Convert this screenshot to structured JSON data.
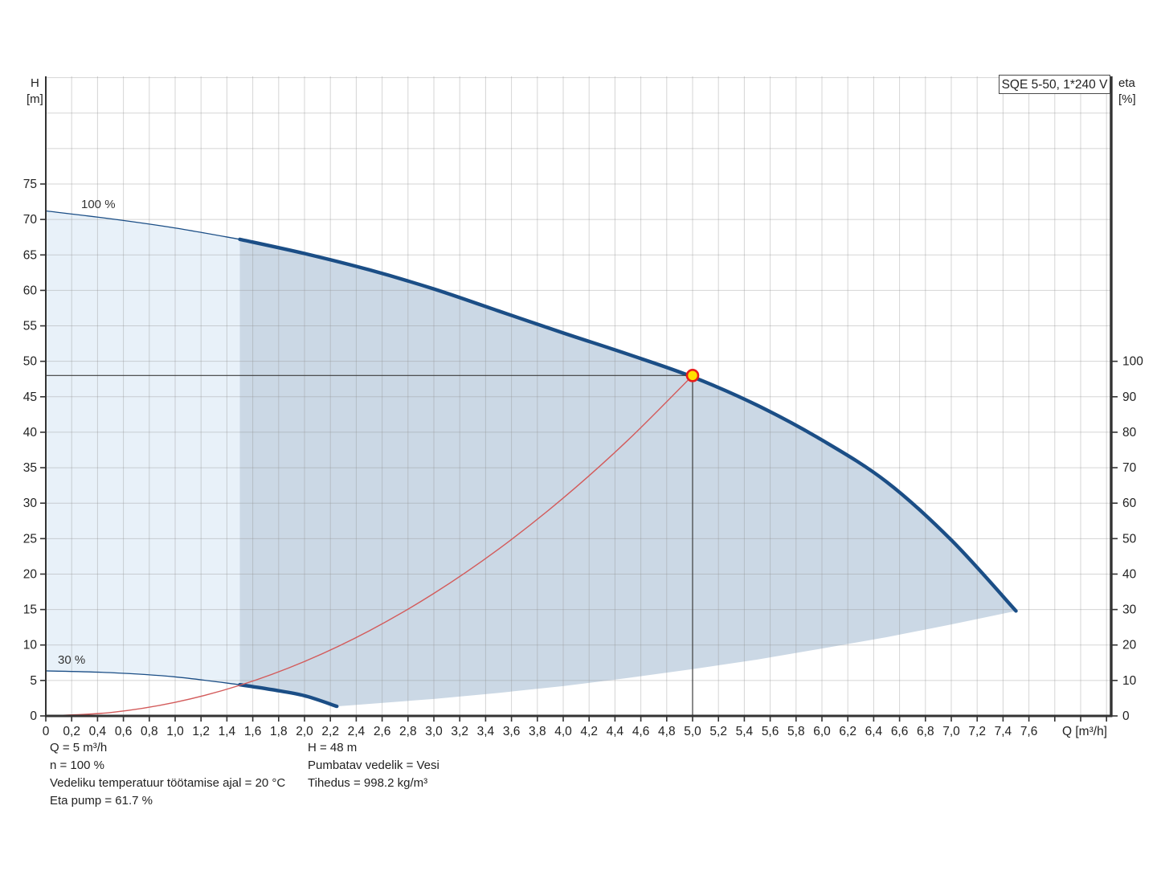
{
  "title_box": {
    "label": "SQE 5-50, 1*240 V"
  },
  "axis_labels": {
    "left_1": "H",
    "left_2": "[m]",
    "right_1": "eta",
    "right_2": "[%]",
    "x": "Q [m³/h]"
  },
  "curve_labels": {
    "c100": "100 %",
    "c30": "30 %"
  },
  "footer": {
    "col1": [
      "Q = 5 m³/h",
      "n = 100 %",
      "Vedeliku temperatuur töötamise ajal = 20 °C",
      "Eta pump = 61.7 %"
    ],
    "col2": [
      "H = 48 m",
      "Pumbatav vedelik = Vesi",
      "Tihedus = 998.2 kg/m³"
    ]
  },
  "colors": {
    "curve_blue": "#1b4e86",
    "fill_light": "#e8f1f9",
    "fill_dark": "#cbd8e5",
    "system_red": "#d35b5b",
    "grid": "rgba(145,145,145,0.38)",
    "axis": "#333333",
    "crosshair": "#3c3c3c",
    "marker_fill": "#ffdf00",
    "marker_stroke": "#e81c1c",
    "tick_text": "#222222"
  },
  "chart_data": {
    "type": "line",
    "title": "SQE 5-50, 1*240 V",
    "xlabel": "Q [m³/h]",
    "ylabel_left": "H [m]",
    "ylabel_right": "eta [%]",
    "xlim": [
      0,
      8.25
    ],
    "ylim_left": [
      0,
      90.2
    ],
    "ylim_right_eta": [
      0,
      100
    ],
    "grid": true,
    "x_ticks": {
      "step": 0.2,
      "label_max": 7.6,
      "grid_max": 8.2,
      "decimal_separator": ","
    },
    "h_ticks": {
      "step": 5,
      "label_max": 75,
      "grid_max": 90
    },
    "eta_ticks": {
      "step": 10,
      "max": 100,
      "h_equivalent_of_eta100": 50
    },
    "series": [
      {
        "name": "pump-curve-100pct-unclipped",
        "speed_label": "100 %",
        "style": "thin-blue",
        "points": [
          [
            0,
            71.2
          ],
          [
            0.5,
            70.1
          ],
          [
            1.0,
            68.8
          ],
          [
            1.5,
            67.2
          ]
        ]
      },
      {
        "name": "pump-curve-100pct",
        "speed_label": "100 %",
        "style": "thick-blue",
        "points": [
          [
            1.5,
            67.2
          ],
          [
            2.0,
            65.2
          ],
          [
            2.5,
            62.9
          ],
          [
            3.0,
            60.2
          ],
          [
            3.5,
            57.1
          ],
          [
            4.0,
            54.0
          ],
          [
            4.5,
            51.0
          ],
          [
            5.0,
            47.8
          ],
          [
            5.5,
            43.8
          ],
          [
            6.0,
            38.9
          ],
          [
            6.5,
            33.0
          ],
          [
            7.0,
            24.8
          ],
          [
            7.5,
            14.8
          ]
        ]
      },
      {
        "name": "pump-curve-30pct-unclipped",
        "speed_label": "30 %",
        "style": "thin-blue",
        "points": [
          [
            0,
            6.35
          ],
          [
            0.5,
            6.1
          ],
          [
            1.0,
            5.5
          ],
          [
            1.5,
            4.4
          ]
        ]
      },
      {
        "name": "pump-curve-30pct",
        "speed_label": "30 %",
        "style": "thick-blue",
        "points": [
          [
            1.5,
            4.4
          ],
          [
            1.75,
            3.7
          ],
          [
            2.0,
            2.85
          ],
          [
            2.25,
            1.35
          ]
        ]
      },
      {
        "name": "system-curve",
        "style": "thin-red",
        "points": [
          [
            0,
            0
          ],
          [
            0.5,
            0.48
          ],
          [
            1.0,
            1.92
          ],
          [
            1.5,
            4.32
          ],
          [
            2.0,
            7.68
          ],
          [
            2.5,
            12.0
          ],
          [
            3.0,
            17.28
          ],
          [
            3.5,
            23.52
          ],
          [
            4.0,
            30.72
          ],
          [
            4.5,
            38.88
          ],
          [
            5.0,
            48
          ]
        ]
      }
    ],
    "envelope": {
      "light_region_q_range": [
        0,
        1.5
      ],
      "dark_region_q_range": [
        1.5,
        7.5
      ],
      "lower_boundary_points": [
        [
          1.5,
          4.4
        ],
        [
          1.75,
          3.7
        ],
        [
          2.0,
          2.85
        ],
        [
          2.25,
          1.35
        ],
        [
          3.0,
          2.4
        ],
        [
          3.5,
          3.25
        ],
        [
          4.0,
          4.2
        ],
        [
          4.5,
          5.35
        ],
        [
          5.0,
          6.6
        ],
        [
          5.5,
          7.95
        ],
        [
          6.0,
          9.5
        ],
        [
          6.5,
          11.1
        ],
        [
          7.0,
          12.9
        ],
        [
          7.5,
          14.8
        ]
      ]
    },
    "operating_point": {
      "q": 5,
      "h": 48,
      "crosshair": true
    }
  }
}
